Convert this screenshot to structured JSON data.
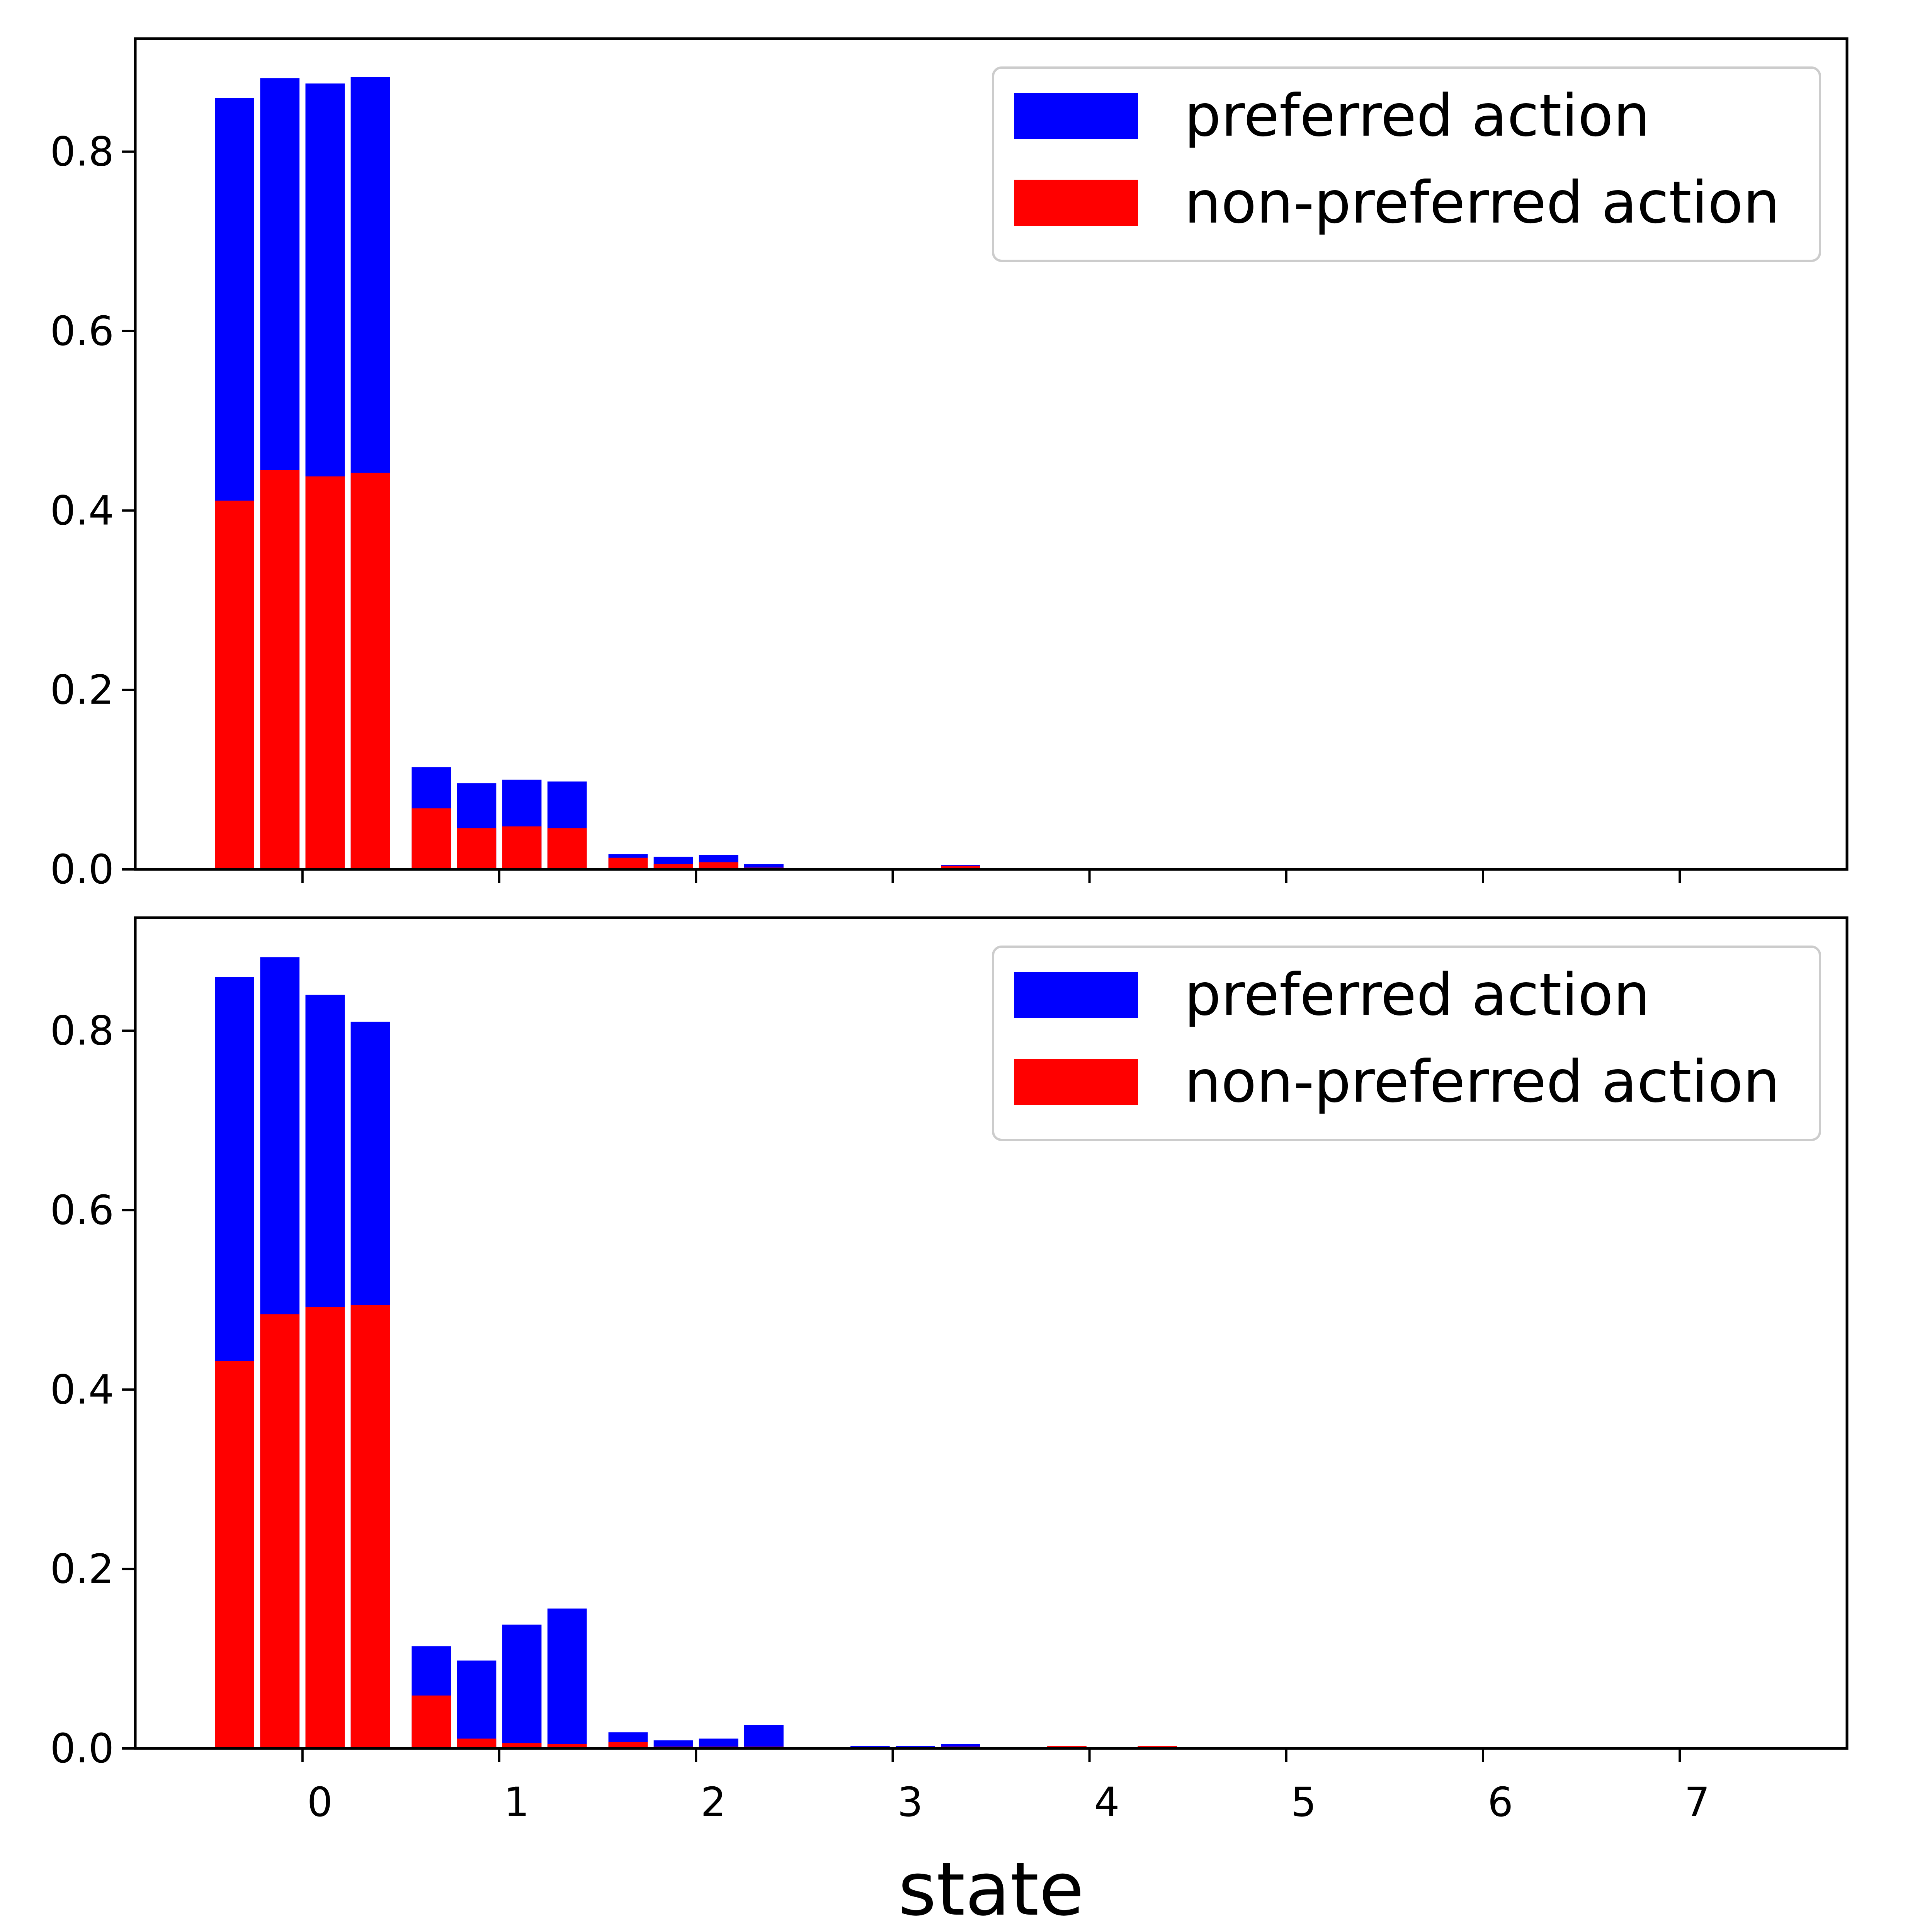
{
  "chart_data": [
    {
      "type": "bar",
      "stacked": "overlay",
      "x_ticks": [
        "0",
        "1",
        "2",
        "3",
        "4",
        "5",
        "6",
        "7"
      ],
      "tick_labels_shown": false,
      "xlabel": "",
      "ylabel": "",
      "xlim": [
        -0.85,
        7.85
      ],
      "ylim": [
        0,
        0.926
      ],
      "y_ticks": [
        "0.0",
        "0.2",
        "0.4",
        "0.6",
        "0.8"
      ],
      "grid": false,
      "legend_position": "top-right",
      "bars_per_state": 4,
      "series": [
        {
          "name": "preferred action",
          "color": "#0000ff",
          "values": [
            0.86,
            0.882,
            0.876,
            0.883,
            0.114,
            0.096,
            0.1,
            0.098,
            0.017,
            0.014,
            0.016,
            0.006,
            0,
            0,
            0,
            0.005,
            0,
            0,
            0,
            0,
            0,
            0,
            0,
            0,
            0,
            0,
            0,
            0,
            0,
            0,
            0,
            0
          ]
        },
        {
          "name": "non-preferred action",
          "color": "#ff0000",
          "values": [
            0.411,
            0.445,
            0.438,
            0.442,
            0.068,
            0.046,
            0.048,
            0.046,
            0.013,
            0.006,
            0.008,
            0.002,
            0,
            0,
            0,
            0.004,
            0,
            0,
            0,
            0,
            0,
            0,
            0,
            0,
            0,
            0,
            0,
            0,
            0,
            0,
            0,
            0
          ]
        }
      ]
    },
    {
      "type": "bar",
      "stacked": "overlay",
      "x_ticks": [
        "0",
        "1",
        "2",
        "3",
        "4",
        "5",
        "6",
        "7"
      ],
      "tick_labels_shown": true,
      "xlabel": "state",
      "ylabel": "",
      "xlim": [
        -0.85,
        7.85
      ],
      "ylim": [
        0,
        0.926
      ],
      "y_ticks": [
        "0.0",
        "0.2",
        "0.4",
        "0.6",
        "0.8"
      ],
      "grid": false,
      "legend_position": "top-right",
      "bars_per_state": 4,
      "series": [
        {
          "name": "preferred action",
          "color": "#0000ff",
          "values": [
            0.86,
            0.882,
            0.84,
            0.81,
            0.114,
            0.098,
            0.138,
            0.156,
            0.018,
            0.009,
            0.011,
            0.026,
            0,
            0.003,
            0.003,
            0.005,
            0,
            0.001,
            0,
            0,
            0,
            0,
            0,
            0,
            0,
            0,
            0,
            0,
            0,
            0,
            0,
            0
          ]
        },
        {
          "name": "non-preferred action",
          "color": "#ff0000",
          "values": [
            0.432,
            0.484,
            0.492,
            0.494,
            0.059,
            0.011,
            0.006,
            0.005,
            0.007,
            0.002,
            0.002,
            0.002,
            0,
            0.001,
            0.001,
            0.002,
            0,
            0.003,
            0,
            0.003,
            0,
            0,
            0,
            0,
            0,
            0,
            0,
            0,
            0,
            0,
            0,
            0
          ]
        }
      ]
    }
  ]
}
